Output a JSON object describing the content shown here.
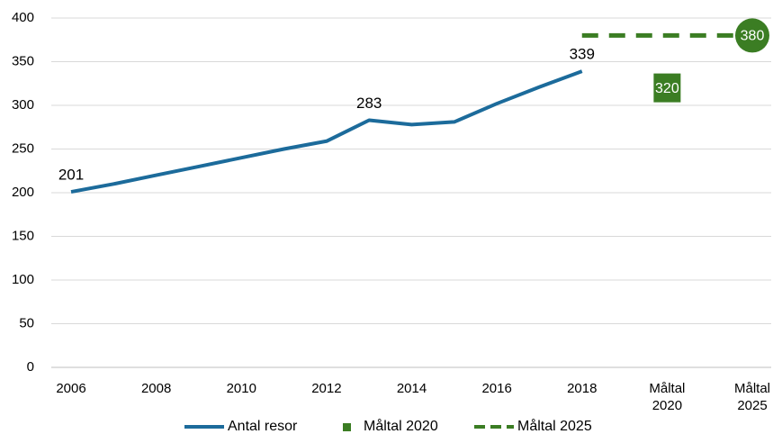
{
  "chart_data": {
    "type": "line",
    "categories": [
      "2006",
      null,
      "2008",
      null,
      "2010",
      null,
      "2012",
      null,
      "2014",
      null,
      "2016",
      null,
      "2018",
      null,
      "Måltal 2020",
      null,
      "Måltal 2025"
    ],
    "series": [
      {
        "name": "Antal resor",
        "color": "#1c6b9b",
        "marker": "none",
        "dashed": false,
        "values": [
          201,
          210,
          220,
          230,
          240,
          250,
          259,
          283,
          278,
          281,
          302,
          321,
          339,
          null,
          null,
          null,
          null
        ],
        "value_labels": [
          "201",
          null,
          null,
          null,
          null,
          null,
          null,
          "283",
          null,
          null,
          null,
          null,
          "339",
          null,
          null,
          null,
          null
        ]
      },
      {
        "name": "Måltal 2020",
        "color": "#3b7d23",
        "marker": "square",
        "dashed": false,
        "values": [
          null,
          null,
          null,
          null,
          null,
          null,
          null,
          null,
          null,
          null,
          null,
          null,
          null,
          null,
          320,
          null,
          null
        ],
        "value_labels": [
          null,
          null,
          null,
          null,
          null,
          null,
          null,
          null,
          null,
          null,
          null,
          null,
          null,
          null,
          "320",
          null,
          null
        ]
      },
      {
        "name": "Måltal 2025",
        "color": "#3b7d23",
        "marker": "circle",
        "dashed": true,
        "values": [
          null,
          null,
          null,
          null,
          null,
          null,
          null,
          null,
          null,
          null,
          null,
          null,
          380,
          380,
          380,
          380,
          380
        ],
        "value_labels": [
          null,
          null,
          null,
          null,
          null,
          null,
          null,
          null,
          null,
          null,
          null,
          null,
          null,
          null,
          null,
          null,
          "380"
        ]
      }
    ],
    "ylim": [
      0,
      400
    ],
    "yticks": [
      0,
      50,
      100,
      150,
      200,
      250,
      300,
      350,
      400
    ],
    "grid": true,
    "legend": "bottom"
  }
}
